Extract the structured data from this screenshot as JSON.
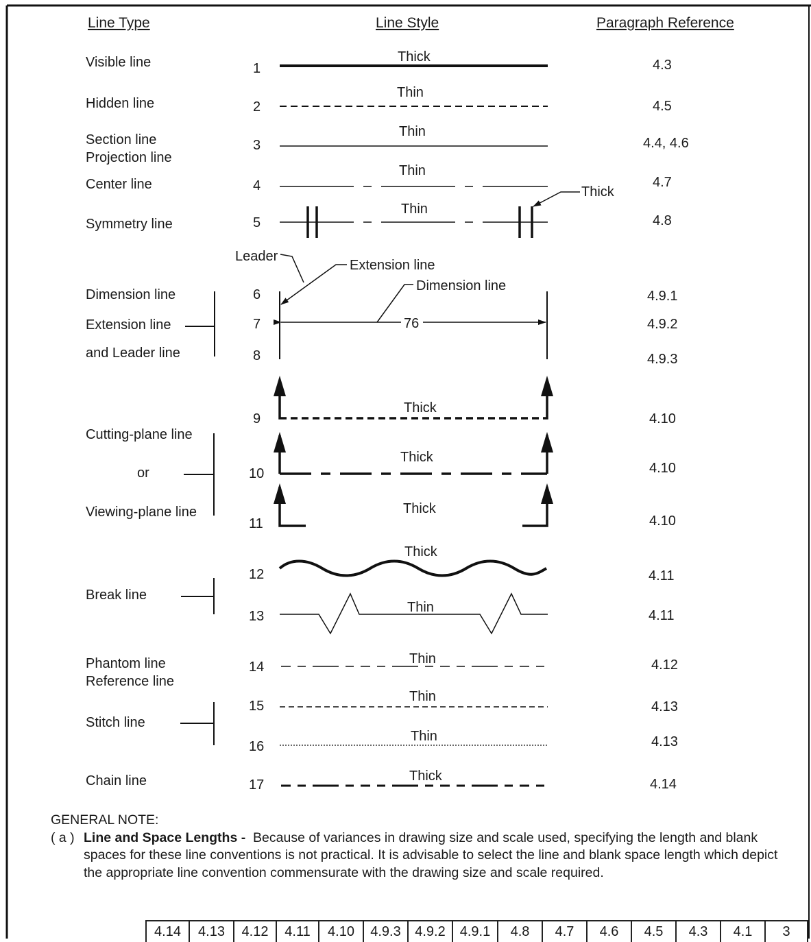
{
  "headers": {
    "line_type": "Line Type",
    "line_style": "Line Style",
    "paragraph_reference": "Paragraph Reference"
  },
  "line_types": {
    "visible": "Visible line",
    "hidden": "Hidden line",
    "section": "Section line",
    "projection": "Projection line",
    "center": "Center line",
    "symmetry": "Symmetry line",
    "dimension": "Dimension line",
    "extension": "Extension line",
    "and_leader": "and Leader line",
    "cutting_plane": "Cutting-plane line",
    "or": "or",
    "viewing_plane": "Viewing-plane line",
    "break": "Break line",
    "phantom": "Phantom line",
    "reference": "Reference line",
    "stitch": "Stitch line",
    "chain": "Chain line"
  },
  "numbers": [
    "1",
    "2",
    "3",
    "4",
    "5",
    "6",
    "7",
    "8",
    "9",
    "10",
    "11",
    "12",
    "13",
    "14",
    "15",
    "16",
    "17"
  ],
  "weights": {
    "w1": "Thick",
    "w2": "Thin",
    "w3": "Thin",
    "w4": "Thin",
    "w5": "Thin",
    "w5b": "Thick",
    "w9": "Thick",
    "w10": "Thick",
    "w11": "Thick",
    "w12": "Thick",
    "w13": "Thin",
    "w14": "Thin",
    "w15": "Thin",
    "w16": "Thin",
    "w17": "Thick"
  },
  "annotations": {
    "leader": "Leader",
    "extension_line": "Extension line",
    "dimension_line": "Dimension line",
    "dim_value": "76"
  },
  "refs": {
    "r1": "4.3",
    "r2": "4.5",
    "r3": "4.4, 4.6",
    "r4": "4.7",
    "r5": "4.8",
    "r6": "4.9.1",
    "r7": "4.9.2",
    "r8": "4.9.3",
    "r9": "4.10",
    "r10": "4.10",
    "r11": "4.10",
    "r12": "4.11",
    "r13": "4.11",
    "r14": "4.12",
    "r15": "4.13",
    "r16": "4.13",
    "r17": "4.14"
  },
  "general_note": {
    "heading": "GENERAL NOTE:",
    "tag": "( a )",
    "title": "Line and Space Lengths -",
    "text": "Because of variances in drawing size and scale used, specifying the length and blank spaces for these line conventions is not practical. It is advisable to select the line and blank space length which depict the appropriate line convention commensurate with the drawing size and scale required."
  },
  "revision_cells": [
    "4.14",
    "4.13",
    "4.12",
    "4.11",
    "4.10",
    "4.9.3",
    "4.9.2",
    "4.9.1",
    "4.8",
    "4.7",
    "4.6",
    "4.5",
    "4.3",
    "4.1",
    "3"
  ]
}
